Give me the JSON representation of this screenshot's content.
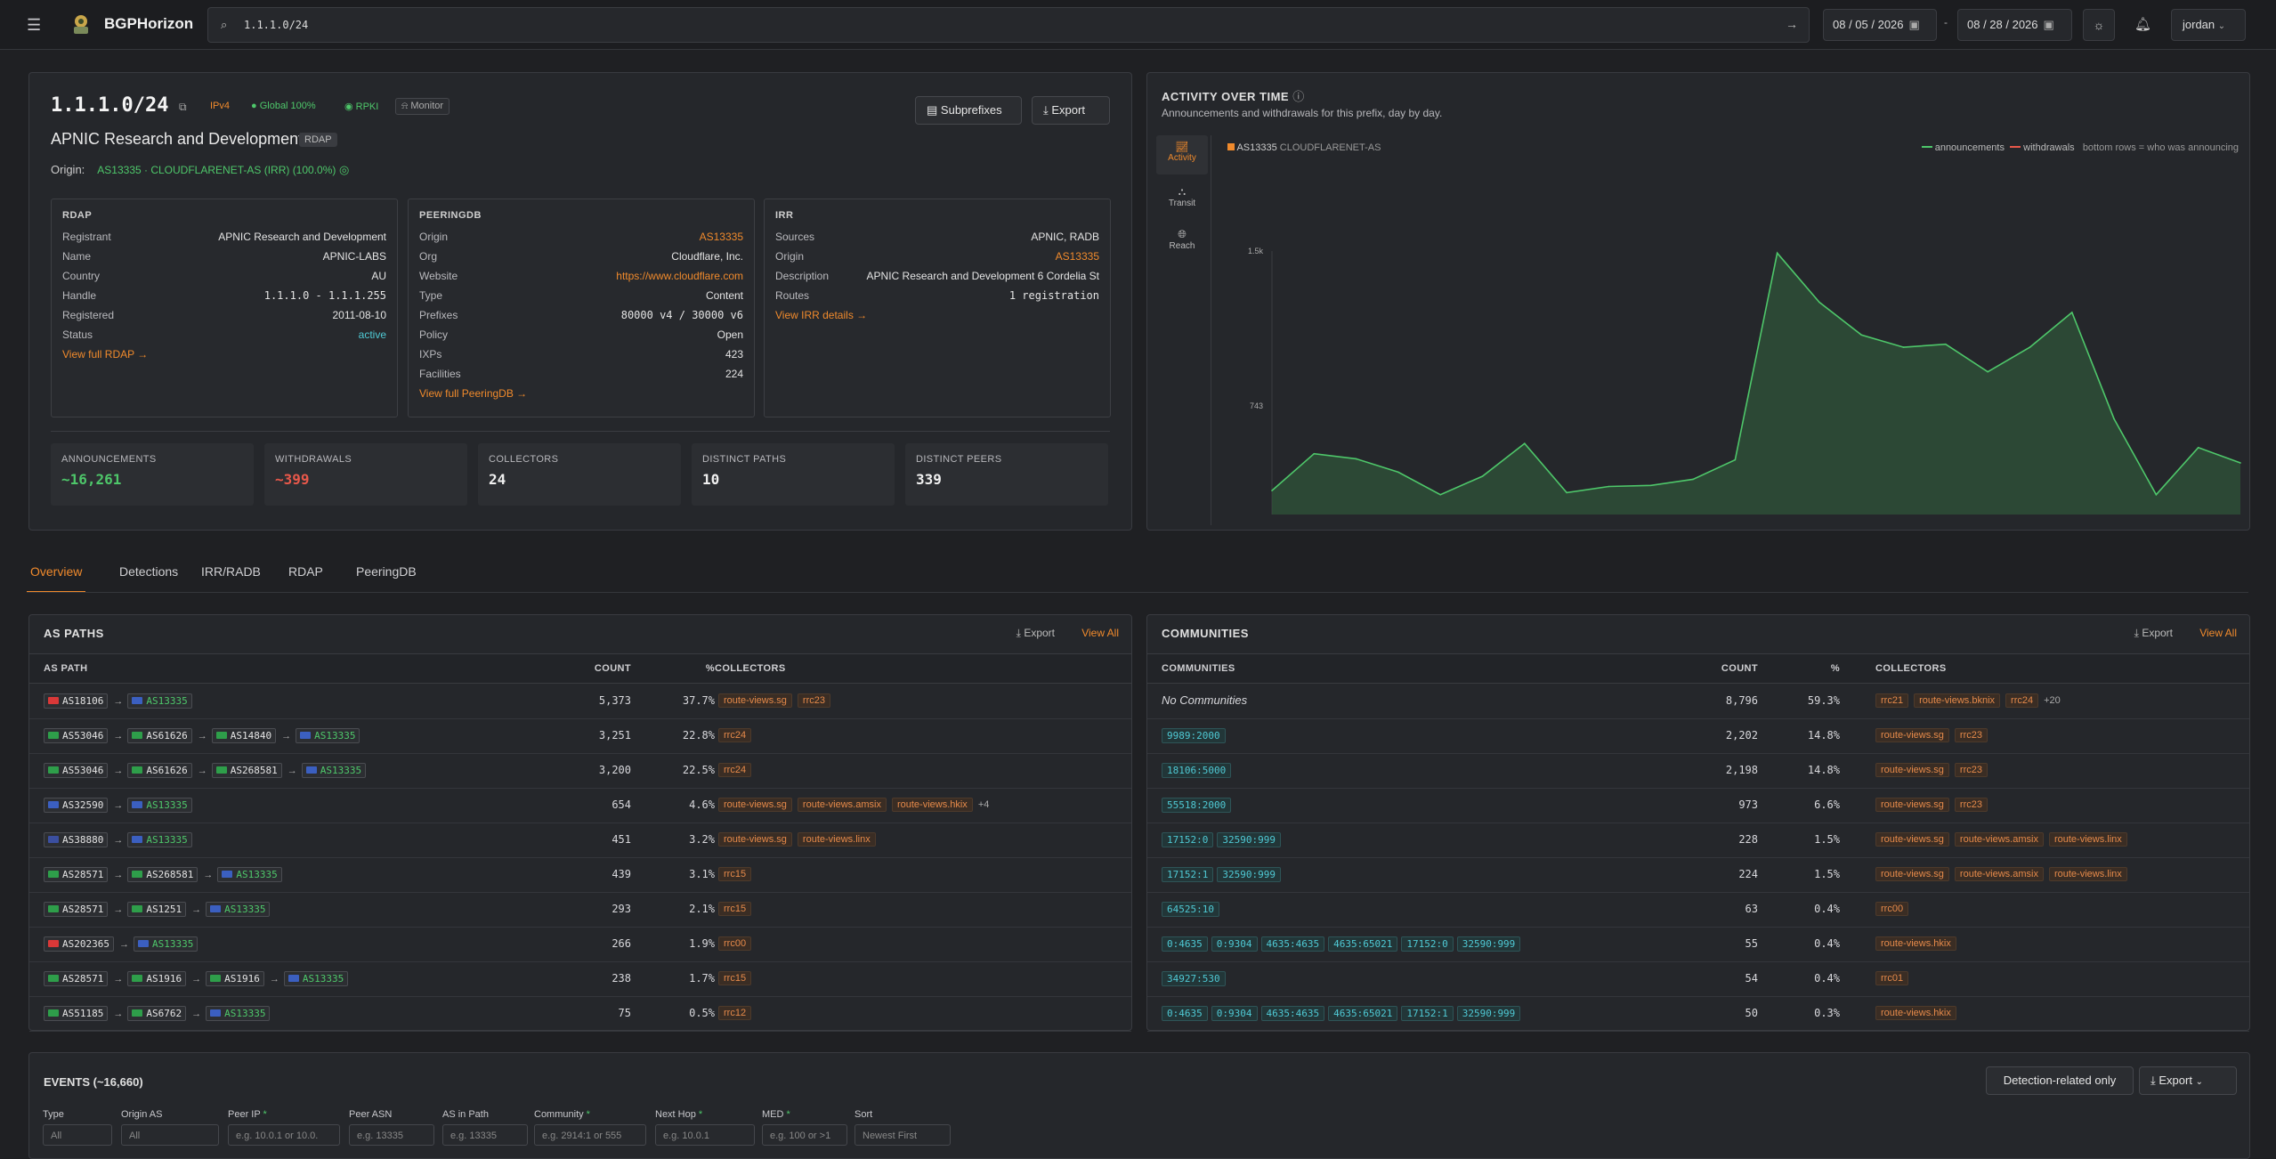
{
  "app": {
    "name": "BGPHorizon"
  },
  "search": {
    "value": "1.1.1.0/24"
  },
  "dates": {
    "from": "08 / 05 / 2026",
    "to": "08 / 28 / 2026",
    "separator": "-"
  },
  "user": {
    "name": "jordan"
  },
  "prefix": {
    "value": "1.1.1.0/24",
    "ipv": "IPv4",
    "global": "Global 100%",
    "rpki": "RPKI",
    "monitor": "Monitor",
    "org": "APNIC Research and Development",
    "org_badge": "RDAP",
    "origin_label": "Origin:",
    "origin_value": "AS13335 · CLOUDFLARENET-AS (IRR) (100.0%)",
    "subprefixes": "Subprefixes",
    "export": "Export"
  },
  "rdap": {
    "title": "RDAP",
    "rows": [
      [
        "Registrant",
        "APNIC Research and Development"
      ],
      [
        "Name",
        "APNIC-LABS"
      ],
      [
        "Country",
        "AU"
      ],
      [
        "Handle",
        "1.1.1.0 - 1.1.1.255"
      ],
      [
        "Registered",
        "2011-08-10"
      ],
      [
        "Status",
        "active"
      ]
    ],
    "link": "View full RDAP →"
  },
  "peeringdb": {
    "title": "PEERINGDB",
    "rows": [
      [
        "Origin",
        "AS13335"
      ],
      [
        "Org",
        "Cloudflare, Inc."
      ],
      [
        "Website",
        "https://www.cloudflare.com"
      ],
      [
        "Type",
        "Content"
      ],
      [
        "Prefixes",
        "80000 v4 / 30000 v6"
      ],
      [
        "Policy",
        "Open"
      ],
      [
        "IXPs",
        "423"
      ],
      [
        "Facilities",
        "224"
      ]
    ],
    "link": "View full PeeringDB →"
  },
  "irr": {
    "title": "IRR",
    "rows": [
      [
        "Sources",
        "APNIC, RADB"
      ],
      [
        "Origin",
        "AS13335"
      ],
      [
        "Description",
        "APNIC Research and Development 6 Cordelia St"
      ],
      [
        "Routes",
        "1 registration"
      ]
    ],
    "link": "View IRR details →"
  },
  "stats": [
    {
      "label": "ANNOUNCEMENTS",
      "value": "~16,261",
      "color": "#4ec76a"
    },
    {
      "label": "WITHDRAWALS",
      "value": "~399",
      "color": "#e8584a"
    },
    {
      "label": "COLLECTORS",
      "value": "24",
      "color": "#f0f0f0"
    },
    {
      "label": "DISTINCT PATHS",
      "value": "10",
      "color": "#f0f0f0"
    },
    {
      "label": "DISTINCT PEERS",
      "value": "339",
      "color": "#f0f0f0"
    }
  ],
  "activity": {
    "title": "ACTIVITY OVER TIME",
    "subtitle": "Announcements and withdrawals for this prefix, day by day.",
    "side": [
      "Activity",
      "Transit",
      "Reach"
    ],
    "origin_legend": "AS13335",
    "origin_legend_name": "CLOUDFLARENET-AS",
    "legend_ann": "announcements",
    "legend_wd": "withdrawals",
    "legend_note": "bottom rows = who was announcing"
  },
  "chart_data": {
    "type": "area",
    "x_start": "08-05",
    "x_end": "08-28",
    "y_ticks": [
      "1.5k",
      "743",
      "0"
    ],
    "ylim": [
      0,
      1500
    ],
    "series": [
      {
        "name": "announcements",
        "values": [
          330,
          510,
          485,
          420,
          310,
          400,
          560,
          320,
          350,
          355,
          385,
          480,
          1490,
          1250,
          1090,
          1030,
          1045,
          910,
          1030,
          1200,
          680,
          310,
          540,
          465
        ]
      },
      {
        "name": "withdrawals",
        "values": [
          10,
          10,
          8,
          55,
          8,
          8,
          8,
          8,
          10,
          10,
          12,
          15,
          10,
          8,
          10,
          8,
          35,
          18,
          5,
          25,
          5,
          5,
          25,
          25
        ]
      }
    ]
  },
  "tabs": [
    "Overview",
    "Detections",
    "IRR/RADB",
    "RDAP",
    "PeeringDB"
  ],
  "aspaths": {
    "title": "AS PATHS",
    "export": "Export",
    "view_all": "View All",
    "headers": [
      "AS PATH",
      "COUNT",
      "%",
      "COLLECTORS"
    ],
    "rows": [
      {
        "path": [
          [
            "AS18106",
            "#d93838"
          ],
          [
            "AS13335",
            "#3b5fc0"
          ]
        ],
        "count": "5,373",
        "pct": "37.7%",
        "collectors": [
          "route-views.sg",
          "rrc23"
        ],
        "more": ""
      },
      {
        "path": [
          [
            "AS53046",
            "#2e9e4a"
          ],
          [
            "AS61626",
            "#2e9e4a"
          ],
          [
            "AS14840",
            "#2e9e4a"
          ],
          [
            "AS13335",
            "#3b5fc0"
          ]
        ],
        "count": "3,251",
        "pct": "22.8%",
        "collectors": [
          "rrc24"
        ],
        "more": ""
      },
      {
        "path": [
          [
            "AS53046",
            "#2e9e4a"
          ],
          [
            "AS61626",
            "#2e9e4a"
          ],
          [
            "AS268581",
            "#2e9e4a"
          ],
          [
            "AS13335",
            "#3b5fc0"
          ]
        ],
        "count": "3,200",
        "pct": "22.5%",
        "collectors": [
          "rrc24"
        ],
        "more": ""
      },
      {
        "path": [
          [
            "AS32590",
            "#3b5fc0"
          ],
          [
            "AS13335",
            "#3b5fc0"
          ]
        ],
        "count": "654",
        "pct": "4.6%",
        "collectors": [
          "route-views.sg",
          "route-views.amsix",
          "route-views.hkix"
        ],
        "more": "+4"
      },
      {
        "path": [
          [
            "AS38880",
            "#3b4fa0"
          ],
          [
            "AS13335",
            "#3b5fc0"
          ]
        ],
        "count": "451",
        "pct": "3.2%",
        "collectors": [
          "route-views.sg",
          "route-views.linx"
        ],
        "more": ""
      },
      {
        "path": [
          [
            "AS28571",
            "#2e9e4a"
          ],
          [
            "AS268581",
            "#2e9e4a"
          ],
          [
            "AS13335",
            "#3b5fc0"
          ]
        ],
        "count": "439",
        "pct": "3.1%",
        "collectors": [
          "rrc15"
        ],
        "more": ""
      },
      {
        "path": [
          [
            "AS28571",
            "#2e9e4a"
          ],
          [
            "AS1251",
            "#2e9e4a"
          ],
          [
            "AS13335",
            "#3b5fc0"
          ]
        ],
        "count": "293",
        "pct": "2.1%",
        "collectors": [
          "rrc15"
        ],
        "more": ""
      },
      {
        "path": [
          [
            "AS202365",
            "#d93838"
          ],
          [
            "AS13335",
            "#3b5fc0"
          ]
        ],
        "count": "266",
        "pct": "1.9%",
        "collectors": [
          "rrc00"
        ],
        "more": ""
      },
      {
        "path": [
          [
            "AS28571",
            "#2e9e4a"
          ],
          [
            "AS1916",
            "#2e9e4a"
          ],
          [
            "AS1916",
            "#2e9e4a"
          ],
          [
            "AS13335",
            "#3b5fc0"
          ]
        ],
        "count": "238",
        "pct": "1.7%",
        "collectors": [
          "rrc15"
        ],
        "more": ""
      },
      {
        "path": [
          [
            "AS51185",
            "#2e9e4a"
          ],
          [
            "AS6762",
            "#2e9e4a"
          ],
          [
            "AS13335",
            "#3b5fc0"
          ]
        ],
        "count": "75",
        "pct": "0.5%",
        "collectors": [
          "rrc12"
        ],
        "more": ""
      }
    ]
  },
  "communities": {
    "title": "COMMUNITIES",
    "export": "Export",
    "view_all": "View All",
    "headers": [
      "COMMUNITIES",
      "COUNT",
      "%",
      "COLLECTORS"
    ],
    "rows": [
      {
        "comms": [],
        "none": "No Communities",
        "count": "8,796",
        "pct": "59.3%",
        "collectors": [
          "rrc21",
          "route-views.bknix",
          "rrc24"
        ],
        "more": "+20"
      },
      {
        "comms": [
          "9989:2000"
        ],
        "none": "",
        "count": "2,202",
        "pct": "14.8%",
        "collectors": [
          "route-views.sg",
          "rrc23"
        ],
        "more": ""
      },
      {
        "comms": [
          "18106:5000"
        ],
        "none": "",
        "count": "2,198",
        "pct": "14.8%",
        "collectors": [
          "route-views.sg",
          "rrc23"
        ],
        "more": ""
      },
      {
        "comms": [
          "55518:2000"
        ],
        "none": "",
        "count": "973",
        "pct": "6.6%",
        "collectors": [
          "route-views.sg",
          "rrc23"
        ],
        "more": ""
      },
      {
        "comms": [
          "17152:0",
          "32590:999"
        ],
        "none": "",
        "count": "228",
        "pct": "1.5%",
        "collectors": [
          "route-views.sg",
          "route-views.amsix",
          "route-views.linx"
        ],
        "more": ""
      },
      {
        "comms": [
          "17152:1",
          "32590:999"
        ],
        "none": "",
        "count": "224",
        "pct": "1.5%",
        "collectors": [
          "route-views.sg",
          "route-views.amsix",
          "route-views.linx"
        ],
        "more": ""
      },
      {
        "comms": [
          "64525:10"
        ],
        "none": "",
        "count": "63",
        "pct": "0.4%",
        "collectors": [
          "rrc00"
        ],
        "more": ""
      },
      {
        "comms": [
          "0:4635",
          "0:9304",
          "4635:4635",
          "4635:65021",
          "17152:0",
          "32590:999"
        ],
        "none": "",
        "count": "55",
        "pct": "0.4%",
        "collectors": [
          "route-views.hkix"
        ],
        "more": ""
      },
      {
        "comms": [
          "34927:530"
        ],
        "none": "",
        "count": "54",
        "pct": "0.4%",
        "collectors": [
          "rrc01"
        ],
        "more": ""
      },
      {
        "comms": [
          "0:4635",
          "0:9304",
          "4635:4635",
          "4635:65021",
          "17152:1",
          "32590:999"
        ],
        "none": "",
        "count": "50",
        "pct": "0.3%",
        "collectors": [
          "route-views.hkix"
        ],
        "more": ""
      }
    ]
  },
  "events": {
    "title": "EVENTS",
    "count": "(~16,660)",
    "detection_only": "Detection-related only",
    "export": "Export",
    "filters": [
      {
        "label": "Type",
        "value": "All"
      },
      {
        "label": "Origin AS",
        "value": "All"
      },
      {
        "label": "Peer IP",
        "value": "e.g. 10.0.1 or 10.0."
      },
      {
        "label": "Peer ASN",
        "value": "e.g. 13335"
      },
      {
        "label": "AS in Path",
        "value": "e.g. 13335"
      },
      {
        "label": "Community",
        "value": "e.g. 2914:1 or 555"
      },
      {
        "label": "Next Hop",
        "value": "e.g. 10.0.1"
      },
      {
        "label": "MED",
        "value": "e.g. 100 or >1"
      },
      {
        "label": "Sort",
        "value": "Newest First"
      }
    ]
  },
  "colors": {
    "accent": "#f08a2c",
    "green": "#4ec76a",
    "red": "#e8584a",
    "cyan": "#4fc9d4"
  }
}
